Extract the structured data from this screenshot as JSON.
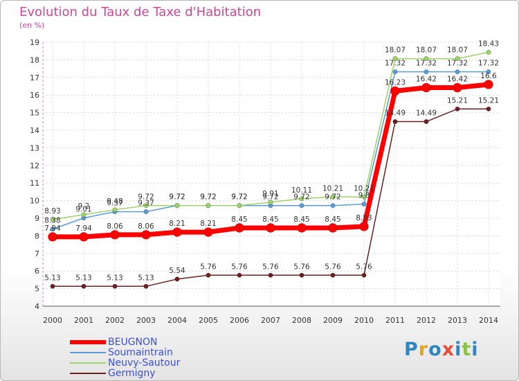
{
  "header": {
    "title": "Evolution du Taux de Taxe d'Habitation",
    "unit": "(en %)"
  },
  "brand": {
    "logo_text": "Proxiti"
  },
  "chart_data": {
    "type": "line",
    "title": "Evolution du Taux de Taxe d'Habitation",
    "ylabel": "(en %)",
    "xlabel": "",
    "ylim": [
      4,
      19
    ],
    "y_ticks": [
      "4",
      "5",
      "6",
      "7",
      "8",
      "9",
      "10",
      "11",
      "12",
      "13",
      "14",
      "15",
      "16",
      "17",
      "18",
      "19"
    ],
    "x": [
      "2000",
      "2001",
      "2002",
      "2003",
      "2004",
      "2005",
      "2006",
      "2007",
      "2008",
      "2009",
      "2010",
      "2011",
      "2012",
      "2013",
      "2014"
    ],
    "grid": true,
    "legend_position": "bottom-left",
    "series": [
      {
        "name": "Germigny",
        "color": "#6b1f1f",
        "values": [
          5.13,
          5.13,
          5.13,
          5.13,
          5.54,
          5.76,
          5.76,
          5.76,
          5.76,
          5.76,
          5.76,
          14.49,
          14.49,
          15.21,
          15.21
        ],
        "labels": [
          "5.13",
          "5.13",
          "5.13",
          "5.13",
          "5.54",
          "5.76",
          "5.76",
          "5.76",
          "5.76",
          "5.76",
          "5.76",
          "14.49",
          "14.49",
          "15.21",
          "15.21"
        ]
      },
      {
        "name": "Soumaintrain",
        "color": "#5b9bd5",
        "values": [
          8.38,
          9.01,
          9.37,
          9.37,
          9.72,
          9.72,
          9.72,
          9.72,
          9.72,
          9.72,
          9.8,
          17.32,
          17.32,
          17.32,
          17.32
        ],
        "labels": [
          "8.38",
          "9.01",
          "9.37",
          "9.37",
          "9.72",
          "9.72",
          "9.72",
          "9.72",
          "9.72",
          "9.72",
          "9.8",
          "17.32",
          "17.32",
          "17.32",
          "17.32"
        ]
      },
      {
        "name": "Neuvy-Sautour",
        "color": "#9ed36a",
        "values": [
          8.93,
          9.2,
          9.48,
          9.72,
          9.72,
          9.72,
          9.72,
          9.91,
          10.11,
          10.21,
          10.21,
          18.07,
          18.07,
          18.07,
          18.43
        ],
        "labels": [
          "8.93",
          "9.2",
          "9.48",
          "9.72",
          "9.72",
          "9.72",
          "9.72",
          "9.91",
          "10.11",
          "10.21",
          "10.21",
          "18.07",
          "18.07",
          "18.07",
          "18.43"
        ]
      },
      {
        "name": "BEUGNON",
        "color": "#ff0000",
        "values": [
          7.94,
          7.94,
          8.06,
          8.06,
          8.21,
          8.21,
          8.45,
          8.45,
          8.45,
          8.45,
          8.53,
          16.23,
          16.42,
          16.42,
          16.6
        ],
        "labels": [
          "7.94",
          "7.94",
          "8.06",
          "8.06",
          "8.21",
          "8.21",
          "8.45",
          "8.45",
          "8.45",
          "8.45",
          "8.53",
          "16.23",
          "16.42",
          "16.42",
          "16.6"
        ]
      }
    ],
    "legend_order": [
      "BEUGNON",
      "Soumaintrain",
      "Neuvy-Sautour",
      "Germigny"
    ]
  }
}
